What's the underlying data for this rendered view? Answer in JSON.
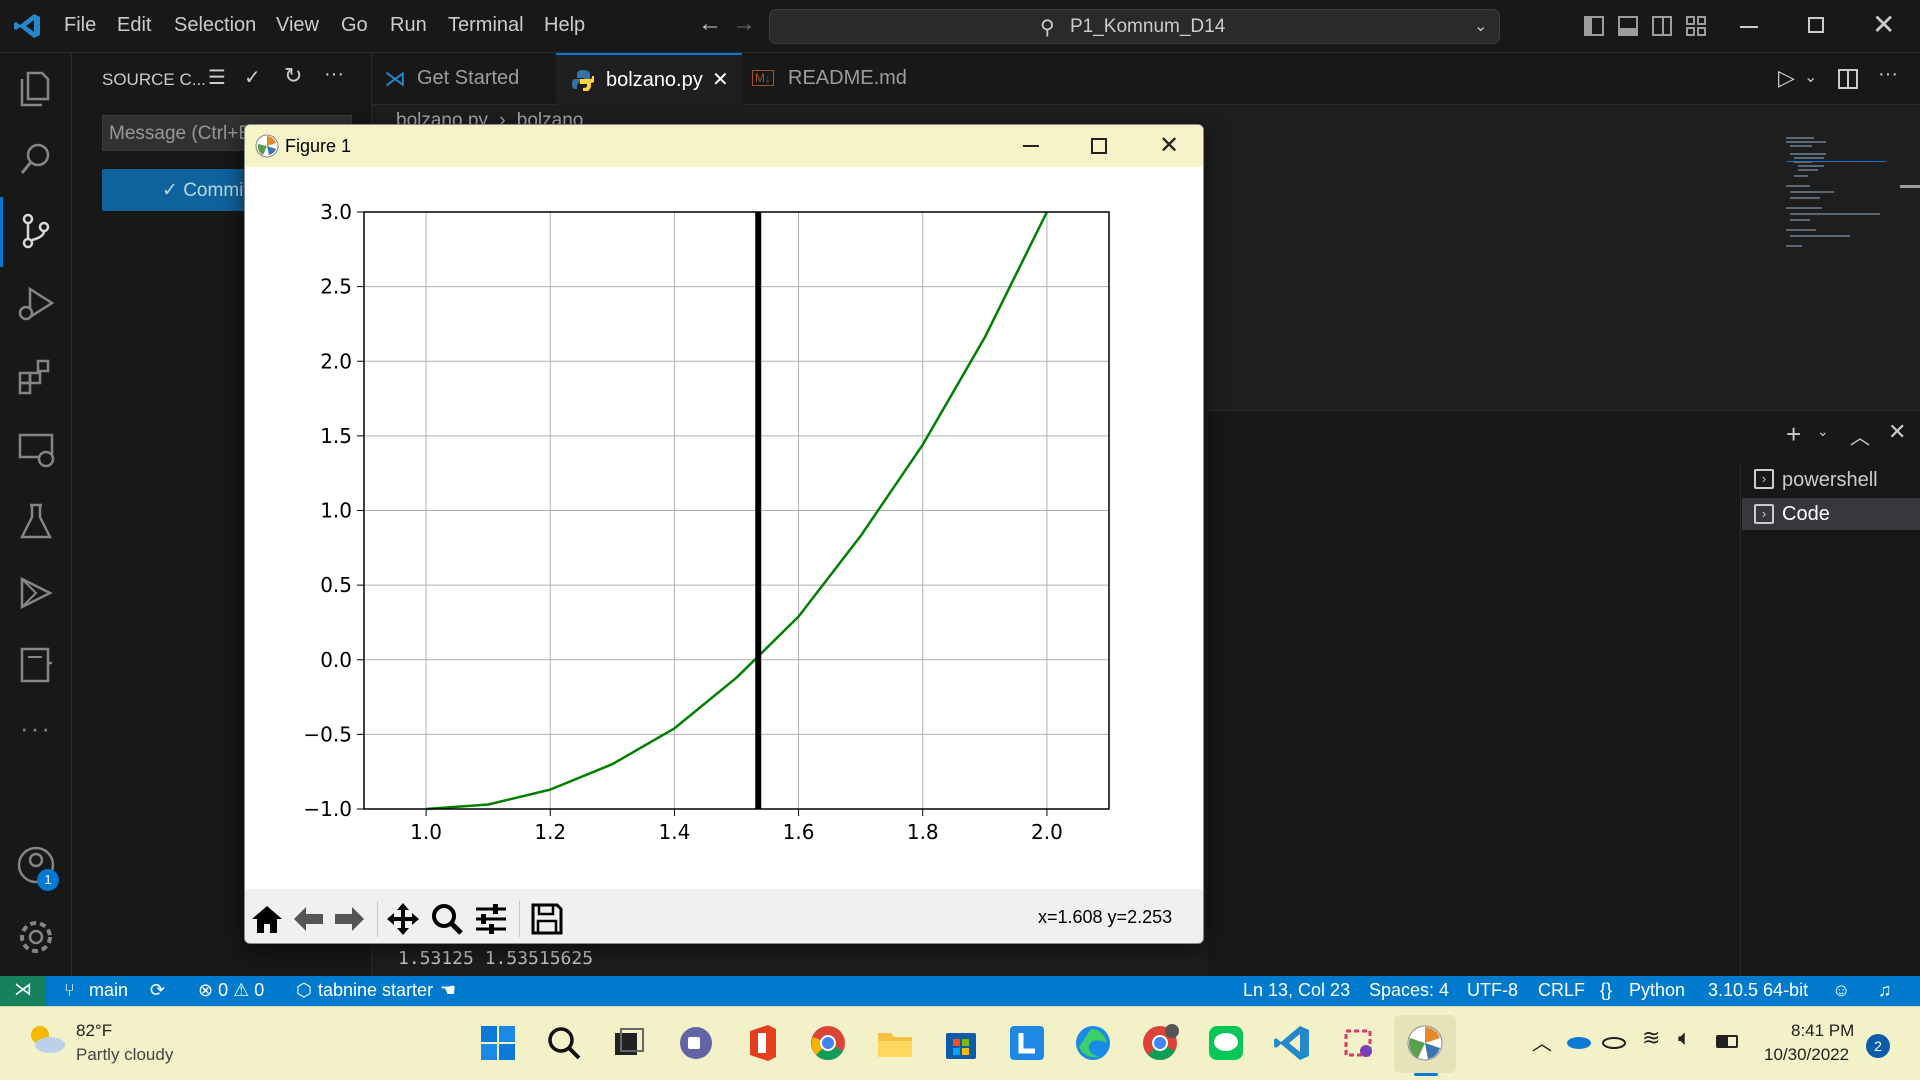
{
  "menu": [
    "File",
    "Edit",
    "Selection",
    "View",
    "Go",
    "Run",
    "Terminal",
    "Help"
  ],
  "command_center": "P1_Komnum_D14",
  "sidebar": {
    "title": "SOURCE C...",
    "message_placeholder": "Message (Ctrl+Enter to commit)",
    "commit_label": "✓ Commit"
  },
  "tabs": [
    {
      "label": "Get Started",
      "active": false
    },
    {
      "label": "bolzano.py",
      "active": true
    },
    {
      "label": "README.md",
      "active": false
    }
  ],
  "breadcrumb": {
    "file": "bolzano.py",
    "symbol": "bolzano"
  },
  "terminal": {
    "output_line": "1.53125 1.53515625",
    "shells": [
      "powershell",
      "Code"
    ]
  },
  "figure": {
    "title": "Figure 1",
    "coords_readout": "x=1.608 y=2.253"
  },
  "chart_data": {
    "type": "line",
    "title": "",
    "xlabel": "",
    "ylabel": "",
    "xlim": [
      0.9,
      2.1
    ],
    "ylim": [
      -1.0,
      3.0
    ],
    "xticks": [
      "1.0",
      "1.2",
      "1.4",
      "1.6",
      "1.8",
      "2.0"
    ],
    "yticks": [
      "3.0",
      "2.5",
      "2.0",
      "1.5",
      "1.0",
      "0.5",
      "0.0",
      "−0.5",
      "−1.0"
    ],
    "grid": true,
    "series": [
      {
        "color": "#008000",
        "x": [
          1.0,
          1.1,
          1.2,
          1.3,
          1.4,
          1.5,
          1.6,
          1.7,
          1.8,
          1.9,
          2.0
        ],
        "y": [
          -1.0,
          -0.97,
          -0.87,
          -0.7,
          -0.46,
          -0.12,
          0.29,
          0.83,
          1.44,
          2.16,
          3.0
        ]
      }
    ],
    "vline": {
      "x": 1.535,
      "color": "#000000"
    }
  },
  "status": {
    "branch": "main",
    "problems": "⊗ 0 ⚠ 0",
    "tabnine": "tabnine starter",
    "position": "Ln 13, Col 23",
    "spaces": "Spaces: 4",
    "encoding": "UTF-8",
    "eol": "CRLF",
    "language": "Python",
    "interpreter": "3.10.5 64-bit"
  },
  "taskbar": {
    "weather_temp": "82°F",
    "weather_desc": "Partly cloudy",
    "time": "8:41 PM",
    "date": "10/30/2022",
    "notifications": "2",
    "account_badge": "1"
  },
  "colors": {
    "accent": "#007acc",
    "plot_line": "#008000",
    "taskbar_bg": "#f3f1c8"
  }
}
